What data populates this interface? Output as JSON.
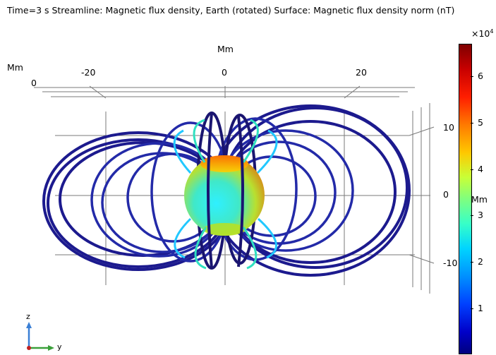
{
  "title": "Time=3 s  Streamline: Magnetic flux density, Earth (rotated)  Surface: Magnetic flux density norm (nT)",
  "axes": {
    "y_unit": "Mm",
    "y_unit_left": "Mm",
    "y_ticks": [
      "-20",
      "0",
      "20"
    ],
    "x_zero_label": "0",
    "z_ticks": [
      "10",
      "0",
      "-10"
    ],
    "z_unit": "Mm"
  },
  "triad": {
    "z": "z",
    "y": "y"
  },
  "colorbar": {
    "exponent": "×10",
    "exponent_power": "4",
    "ticks": [
      "6",
      "5",
      "4",
      "3",
      "2",
      "1"
    ]
  },
  "colors": {
    "field_lines": "#1a1a8c",
    "grid": "#808080",
    "axis_z": "#3a7fd5",
    "axis_y": "#3aa03a"
  }
}
